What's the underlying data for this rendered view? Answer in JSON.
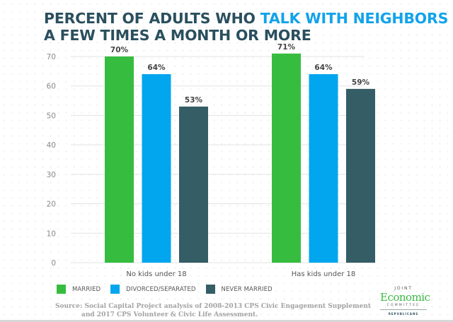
{
  "title": {
    "part1": "PERCENT OF ADULTS WHO ",
    "highlight": "TALK WITH NEIGHBORS",
    "part2": "A FEW TIMES A MONTH OR MORE"
  },
  "colors": {
    "title": "#2a4f5e",
    "highlight": "#12a3ea",
    "married": "#36bd3f",
    "divorced": "#02a6ee",
    "never_married": "#345d65"
  },
  "chart_data": {
    "type": "bar",
    "title": "PERCENT OF ADULTS WHO TALK WITH NEIGHBORS A FEW TIMES A MONTH OR MORE",
    "xlabel": "",
    "ylabel": "",
    "categories": [
      "No kids under 18",
      "Has kids under 18"
    ],
    "series": [
      {
        "name": "MARRIED",
        "values": [
          70,
          71
        ],
        "labels": [
          "70%",
          "71%"
        ],
        "color": "#36bd3f"
      },
      {
        "name": "DIVORCED/SEPARATED",
        "values": [
          64,
          64
        ],
        "labels": [
          "64%",
          "64%"
        ],
        "color": "#02a6ee"
      },
      {
        "name": "NEVER MARRIED",
        "values": [
          53,
          59
        ],
        "labels": [
          "53%",
          "59%"
        ],
        "color": "#345d65"
      }
    ],
    "ylim": [
      0,
      70
    ],
    "yticks": [
      0,
      10,
      20,
      30,
      40,
      50,
      60,
      70
    ],
    "grid": true,
    "legend_position": "bottom-left"
  },
  "legend": [
    {
      "label": "MARRIED",
      "color": "#36bd3f"
    },
    {
      "label": "DIVORCED/SEPARATED",
      "color": "#02a6ee"
    },
    {
      "label": "NEVER MARRIED",
      "color": "#345d65"
    }
  ],
  "source": {
    "line1": "Source: Social Capital Project analysis of 2008-2013 CPS Civic Engagement Supplement",
    "line2": "and 2017 CPS Volunteer & Civic Life Assessment."
  },
  "logo": {
    "joint": "JOINT",
    "economic": "Economic",
    "committee": "COMMITTEE",
    "republicans": "REPUBLICANS"
  }
}
